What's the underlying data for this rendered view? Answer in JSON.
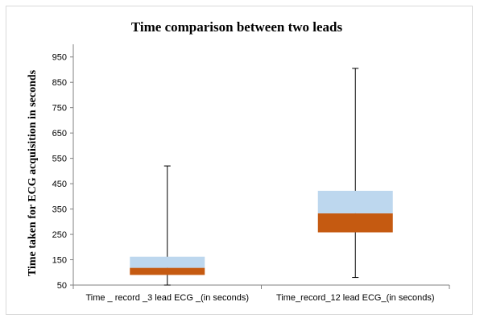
{
  "chart_data": {
    "type": "box",
    "title": "Time comparison between two leads",
    "xlabel": "",
    "ylabel": "Time taken for ECG acquisition  in seconds",
    "ylim": [
      50,
      1000
    ],
    "yticks": [
      50,
      150,
      250,
      350,
      450,
      550,
      650,
      750,
      850,
      950
    ],
    "grid": false,
    "legend": "none",
    "categories": [
      "Time _ record _3 lead ECG _(in seconds)",
      "Time_record_12  lead ECG_(in seconds)"
    ],
    "boxes": [
      {
        "min": 50,
        "q1": 90,
        "median": 118,
        "q3": 162,
        "max": 520
      },
      {
        "min": 80,
        "q1": 258,
        "median": 333,
        "q3": 422,
        "max": 905
      }
    ],
    "colors": {
      "lower_box": "#c55a11",
      "upper_box": "#bdd7ee",
      "whisker": "#000000",
      "axis": "#808080"
    }
  }
}
